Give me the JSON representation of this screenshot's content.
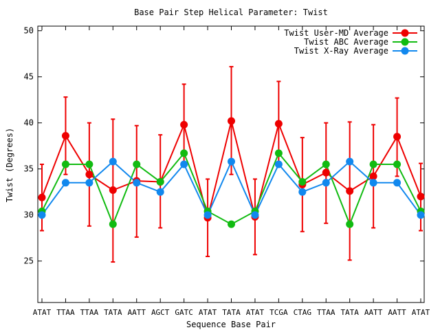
{
  "chart_data": {
    "type": "line",
    "title": "Base Pair Step Helical Parameter: Twist",
    "xlabel": "Sequence Base Pair",
    "ylabel": "Twist (Degrees)",
    "ylim": [
      20.5,
      50.5
    ],
    "yticks": [
      25,
      30,
      35,
      40,
      45,
      50
    ],
    "grid": false,
    "legend_position": "top-right",
    "categories": [
      "ATAT",
      "TTAA",
      "TTAA",
      "TATA",
      "AATT",
      "AGCT",
      "GATC",
      "ATAT",
      "TATA",
      "ATAT",
      "TCGA",
      "CTAG",
      "TTAA",
      "TATA",
      "AATT",
      "AATT",
      "ATAT"
    ],
    "series": [
      {
        "name": "Twist User-MD Average",
        "color": "#ee0000",
        "values": [
          31.9,
          38.6,
          34.4,
          32.7,
          33.7,
          33.6,
          39.8,
          29.7,
          40.2,
          29.8,
          39.9,
          33.3,
          34.6,
          32.6,
          34.2,
          38.5,
          32.0
        ],
        "error_low": [
          28.3,
          34.4,
          28.8,
          24.9,
          27.6,
          28.6,
          35.5,
          25.5,
          34.4,
          25.7,
          35.3,
          28.2,
          29.1,
          25.1,
          28.6,
          34.2,
          28.3
        ],
        "error_high": [
          35.5,
          42.8,
          40.0,
          40.4,
          39.7,
          38.7,
          44.2,
          33.9,
          46.1,
          33.9,
          44.5,
          38.4,
          40.0,
          40.1,
          39.8,
          42.7,
          35.6
        ]
      },
      {
        "name": "Twist ABC Average",
        "color": "#11bb11",
        "values": [
          30.4,
          35.5,
          35.5,
          29.0,
          35.5,
          33.6,
          36.7,
          30.4,
          29.0,
          30.4,
          36.7,
          33.6,
          35.5,
          29.0,
          35.5,
          35.5,
          30.4
        ]
      },
      {
        "name": "Twist X-Ray Average",
        "color": "#1188ee",
        "values": [
          30.0,
          33.5,
          33.5,
          35.8,
          33.5,
          32.5,
          35.5,
          30.0,
          35.8,
          30.0,
          35.5,
          32.5,
          33.5,
          35.8,
          33.5,
          33.5,
          30.0
        ]
      }
    ]
  }
}
